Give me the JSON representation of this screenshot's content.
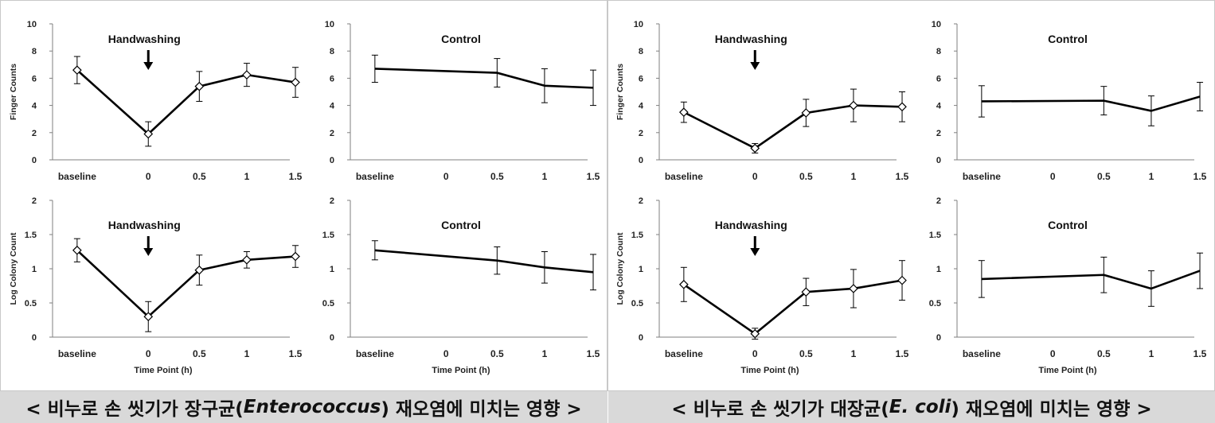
{
  "captions": {
    "left": {
      "prefix": "< 비누로 손 씻기가 장구균(",
      "organism": "Enterococcus",
      "suffix": ") 재오염에 미치는 영향 >"
    },
    "right": {
      "prefix": "< 비누로 손 씻기가 대장균(",
      "organism": "E. coli",
      "suffix": ") 재오염에 미치는 영향 >"
    }
  },
  "arrow_icon": "down-arrow",
  "chart_data": [
    {
      "type": "line",
      "group": "left",
      "position": "top-left",
      "categories": [
        "baseline",
        "0",
        "0.5",
        "1",
        "1.5"
      ],
      "values": [
        6.6,
        1.9,
        5.4,
        6.25,
        5.7
      ],
      "error": [
        1.0,
        0.9,
        1.1,
        0.85,
        1.1
      ],
      "markers": true,
      "annotation": "Handwashing",
      "arrow_at": "0",
      "ylabel": "Finger Counts",
      "xlabel": "",
      "ylim": [
        0,
        10
      ],
      "yticks": [
        0,
        2,
        4,
        6,
        8,
        10
      ]
    },
    {
      "type": "line",
      "group": "left",
      "position": "top-right",
      "categories": [
        "baseline",
        "0",
        "0.5",
        "1",
        "1.5"
      ],
      "values": [
        6.7,
        null,
        6.4,
        5.45,
        5.3
      ],
      "error": [
        1.0,
        null,
        1.05,
        1.25,
        1.3
      ],
      "markers": false,
      "annotation": "Control",
      "ylabel": "",
      "xlabel": "",
      "ylim": [
        0,
        10
      ],
      "yticks": [
        0,
        2,
        4,
        6,
        8,
        10
      ]
    },
    {
      "type": "line",
      "group": "left",
      "position": "bottom-left",
      "categories": [
        "baseline",
        "0",
        "0.5",
        "1",
        "1.5"
      ],
      "values": [
        1.27,
        0.3,
        0.98,
        1.13,
        1.18
      ],
      "error": [
        0.17,
        0.22,
        0.22,
        0.12,
        0.16
      ],
      "markers": true,
      "annotation": "Handwashing",
      "arrow_at": "0",
      "ylabel": "Log Colony Count",
      "xlabel": "Time Point (h)",
      "ylim": [
        0,
        2
      ],
      "yticks": [
        0,
        0.5,
        1,
        1.5,
        2
      ]
    },
    {
      "type": "line",
      "group": "left",
      "position": "bottom-right",
      "categories": [
        "baseline",
        "0",
        "0.5",
        "1",
        "1.5"
      ],
      "values": [
        1.27,
        null,
        1.12,
        1.02,
        0.95
      ],
      "error": [
        0.14,
        null,
        0.2,
        0.23,
        0.26
      ],
      "markers": false,
      "annotation": "Control",
      "ylabel": "",
      "xlabel": "Time Point (h)",
      "ylim": [
        0,
        2
      ],
      "yticks": [
        0,
        0.5,
        1,
        1.5,
        2
      ]
    },
    {
      "type": "line",
      "group": "right",
      "position": "top-left",
      "categories": [
        "baseline",
        "0",
        "0.5",
        "1",
        "1.5"
      ],
      "values": [
        3.5,
        0.85,
        3.45,
        4.0,
        3.9
      ],
      "error": [
        0.75,
        0.35,
        1.0,
        1.2,
        1.1
      ],
      "markers": true,
      "annotation": "Handwashing",
      "arrow_at": "0",
      "ylabel": "Finger Counts",
      "xlabel": "",
      "ylim": [
        0,
        10
      ],
      "yticks": [
        0,
        2,
        4,
        6,
        8,
        10
      ]
    },
    {
      "type": "line",
      "group": "right",
      "position": "top-right",
      "categories": [
        "baseline",
        "0",
        "0.5",
        "1",
        "1.5"
      ],
      "values": [
        4.3,
        null,
        4.35,
        3.6,
        4.65
      ],
      "error": [
        1.15,
        null,
        1.05,
        1.1,
        1.05
      ],
      "markers": false,
      "annotation": "Control",
      "ylabel": "",
      "xlabel": "",
      "ylim": [
        0,
        10
      ],
      "yticks": [
        0,
        2,
        4,
        6,
        8,
        10
      ]
    },
    {
      "type": "line",
      "group": "right",
      "position": "bottom-left",
      "categories": [
        "baseline",
        "0",
        "0.5",
        "1",
        "1.5"
      ],
      "values": [
        0.77,
        0.05,
        0.66,
        0.71,
        0.83
      ],
      "error": [
        0.25,
        0.08,
        0.2,
        0.28,
        0.29
      ],
      "markers": true,
      "annotation": "Handwashing",
      "arrow_at": "0",
      "ylabel": "Log Colony Count",
      "xlabel": "Time Point (h)",
      "ylim": [
        0,
        2
      ],
      "yticks": [
        0,
        0.5,
        1,
        1.5,
        2
      ]
    },
    {
      "type": "line",
      "group": "right",
      "position": "bottom-right",
      "categories": [
        "baseline",
        "0",
        "0.5",
        "1",
        "1.5"
      ],
      "values": [
        0.85,
        null,
        0.91,
        0.71,
        0.97
      ],
      "error": [
        0.27,
        null,
        0.26,
        0.26,
        0.26
      ],
      "markers": false,
      "annotation": "Control",
      "ylabel": "",
      "xlabel": "Time Point (h)",
      "ylim": [
        0,
        2
      ],
      "yticks": [
        0,
        0.5,
        1,
        1.5,
        2
      ]
    }
  ]
}
